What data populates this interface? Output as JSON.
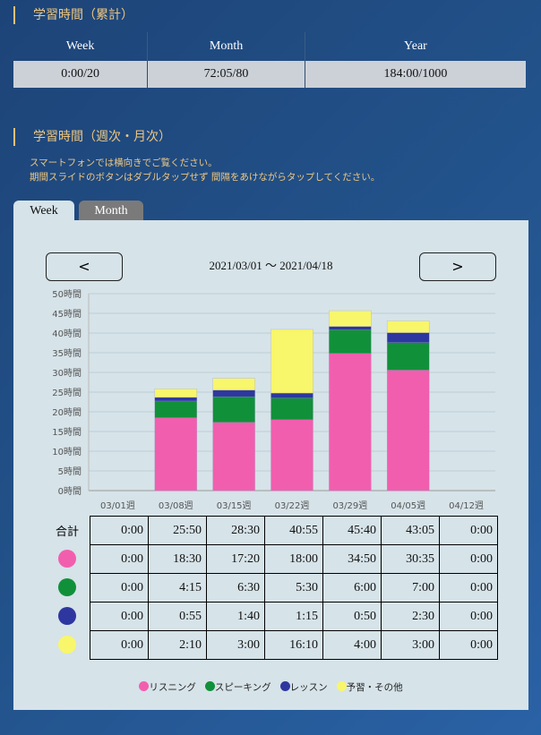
{
  "cumulative": {
    "title": "学習時間（累計）",
    "headers": [
      "Week",
      "Month",
      "Year"
    ],
    "values": [
      "0:00/20",
      "72:05/80",
      "184:00/1000"
    ]
  },
  "periodic": {
    "title": "学習時間（週次・月次）",
    "note1": "スマートフォンでは横向きでご覧ください。",
    "note2": "期間スライドのボタンはダブルタップせず 間隔をあけながらタップしてください。"
  },
  "tabs": [
    {
      "label": "Week",
      "active": true
    },
    {
      "label": "Month",
      "active": false
    }
  ],
  "nav": {
    "prev": "<",
    "next": ">",
    "range": "2021/03/01 〜 2021/04/18"
  },
  "colors": {
    "listening": "#f25eae",
    "speaking": "#11903a",
    "lesson": "#2e37a0",
    "other": "#f8f66a"
  },
  "chart_data": {
    "type": "bar",
    "stacked": true,
    "categories": [
      "03/01週",
      "03/08週",
      "03/15週",
      "03/22週",
      "03/29週",
      "04/05週",
      "04/12週"
    ],
    "yticks": [
      "0時間",
      "5時間",
      "10時間",
      "15時間",
      "20時間",
      "25時間",
      "30時間",
      "35時間",
      "40時間",
      "45時間",
      "50時間"
    ],
    "ylim": [
      0,
      50
    ],
    "grid": true,
    "series": [
      {
        "name": "リスニング",
        "color": "#f25eae",
        "values": [
          0,
          18.5,
          17.333,
          18,
          34.833,
          30.583,
          0
        ]
      },
      {
        "name": "スピーキング",
        "color": "#11903a",
        "values": [
          0,
          4.25,
          6.5,
          5.5,
          6,
          7,
          0
        ]
      },
      {
        "name": "レッスン",
        "color": "#2e37a0",
        "values": [
          0,
          0.917,
          1.667,
          1.25,
          0.833,
          2.5,
          0
        ]
      },
      {
        "name": "予習・その他",
        "color": "#f8f66a",
        "values": [
          0,
          2.167,
          3,
          16.167,
          4,
          3,
          0
        ]
      }
    ]
  },
  "table": {
    "total_label": "合計",
    "rows": [
      [
        "0:00",
        "25:50",
        "28:30",
        "40:55",
        "45:40",
        "43:05",
        "0:00"
      ],
      [
        "0:00",
        "18:30",
        "17:20",
        "18:00",
        "34:50",
        "30:35",
        "0:00"
      ],
      [
        "0:00",
        "4:15",
        "6:30",
        "5:30",
        "6:00",
        "7:00",
        "0:00"
      ],
      [
        "0:00",
        "0:55",
        "1:40",
        "1:15",
        "0:50",
        "2:30",
        "0:00"
      ],
      [
        "0:00",
        "2:10",
        "3:00",
        "16:10",
        "4:00",
        "3:00",
        "0:00"
      ]
    ]
  }
}
